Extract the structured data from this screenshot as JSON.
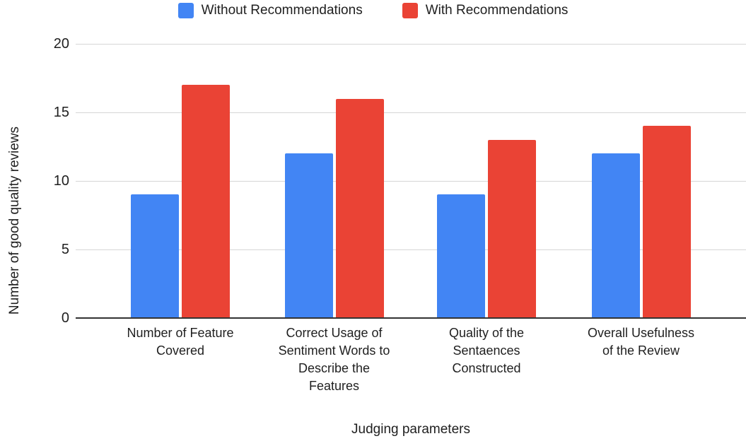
{
  "chart_data": {
    "type": "bar",
    "title": "",
    "categories": [
      "Number of Feature Covered",
      "Correct Usage of Sentiment Words to Describe the Features",
      "Quality of the Sentaences Constructed",
      "Overall Usefulness of the Review"
    ],
    "category_display_lines": [
      [
        "Number of Feature",
        "Covered"
      ],
      [
        "Correct Usage of",
        "Sentiment Words to",
        "Describe the",
        "Features"
      ],
      [
        "Quality of the",
        "Sentaences",
        "Constructed"
      ],
      [
        "Overall Usefulness",
        "of the Review"
      ]
    ],
    "series": [
      {
        "name": "Without Recommendations",
        "color": "#4285F4",
        "values": [
          9,
          12,
          9,
          12
        ]
      },
      {
        "name": "With Recommendations",
        "color": "#EA4335",
        "values": [
          17,
          16,
          13,
          14
        ]
      }
    ],
    "xlabel": "Judging parameters",
    "ylabel": "Number of good quality reviews",
    "ylim": [
      0,
      20
    ],
    "yticks": [
      0,
      5,
      10,
      15,
      20
    ],
    "grid": true,
    "legend_position": "top"
  },
  "colors": {
    "bar_blue": "#4285F4",
    "bar_red": "#EA4335",
    "gridline": "#d6d6d6",
    "axis_line": "#333333",
    "text": "#1f1f1f",
    "background": "#ffffff"
  }
}
